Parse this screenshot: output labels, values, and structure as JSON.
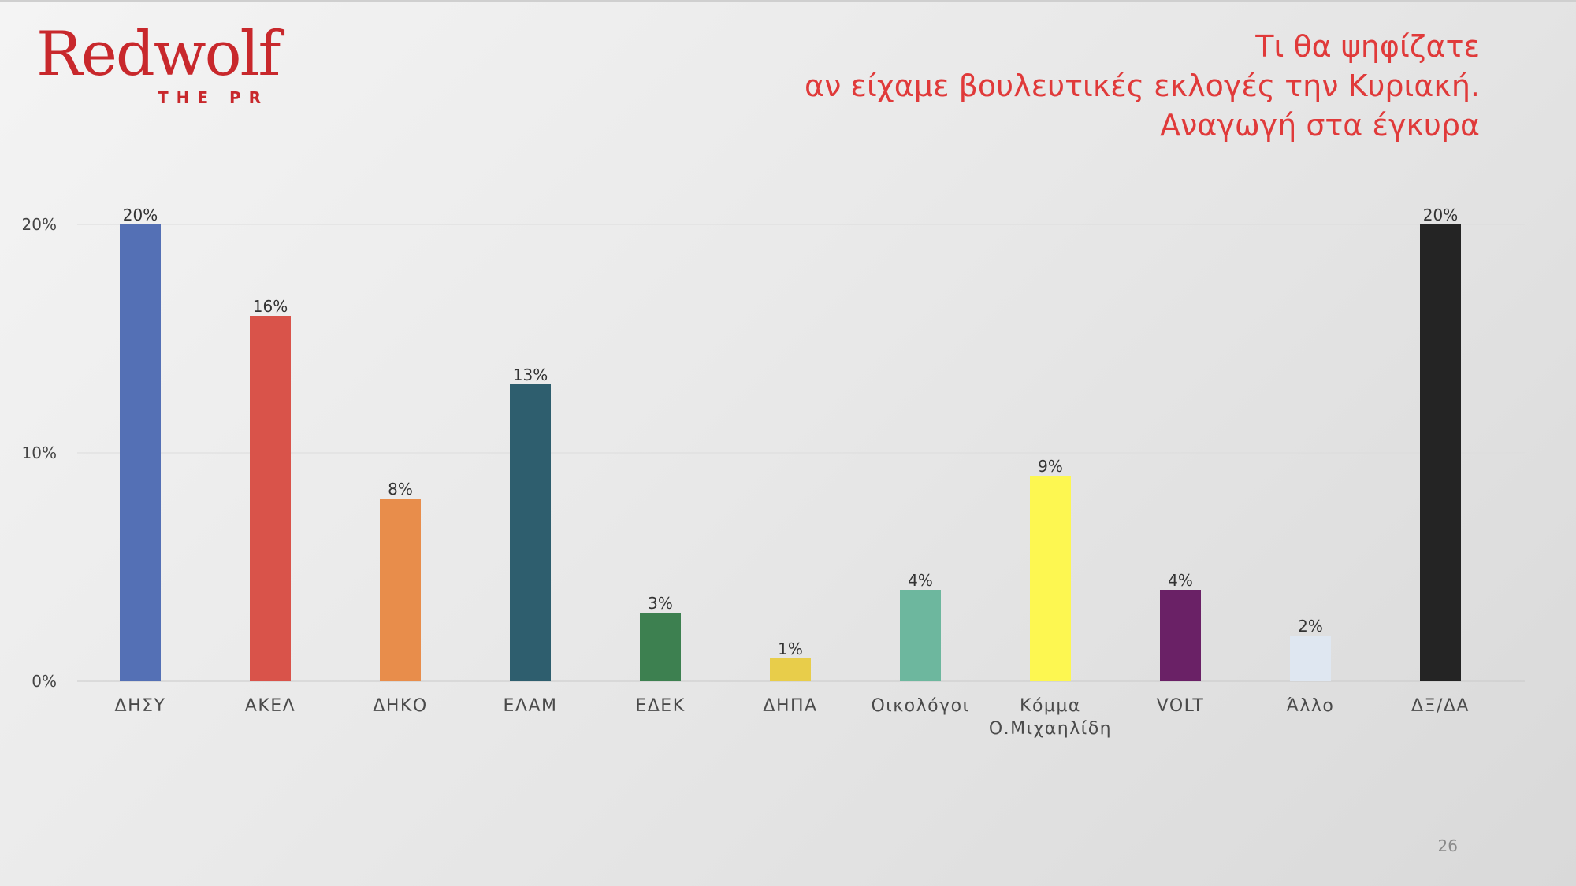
{
  "logo": {
    "word": "Redwolf",
    "sub": "THE PR"
  },
  "title": {
    "lines": [
      "Τι θα ψηφίζατε",
      "αν είχαμε βουλευτικές εκλογές την Κυριακή.",
      "Αναγωγή στα έγκυρα"
    ]
  },
  "page_number": "26",
  "chart_data": {
    "type": "bar",
    "title": "Τι θα ψηφίζατε αν είχαμε βουλευτικές εκλογές την Κυριακή. Αναγωγή στα έγκυρα",
    "xlabel": "",
    "ylabel": "",
    "ylim": [
      0,
      20
    ],
    "yticks": [
      0,
      10,
      20
    ],
    "ytick_labels": [
      "0%",
      "10%",
      "20%"
    ],
    "grid": true,
    "categories": [
      [
        "ΔΗΣΥ"
      ],
      [
        "ΑΚΕΛ"
      ],
      [
        "ΔΗΚΟ"
      ],
      [
        "ΕΛΑΜ"
      ],
      [
        "ΕΔΕΚ"
      ],
      [
        "ΔΗΠΑ"
      ],
      [
        "Οικολόγοι"
      ],
      [
        "Κόμμα",
        "Ο.Μιχαηλίδη"
      ],
      [
        "VOLT"
      ],
      [
        "Άλλο"
      ],
      [
        "ΔΞ/ΔΑ"
      ]
    ],
    "values": [
      20,
      16,
      8,
      13,
      3,
      1,
      4,
      9,
      4,
      2,
      20
    ],
    "value_labels": [
      "20%",
      "16%",
      "8%",
      "13%",
      "3%",
      "1%",
      "4%",
      "9%",
      "4%",
      "2%",
      "20%"
    ],
    "colors": [
      "#5470b5",
      "#d9534a",
      "#e88d4b",
      "#2e5e6e",
      "#3d8050",
      "#e8cd4a",
      "#6db79e",
      "#fdf751",
      "#6a2166",
      "#dfe7f1",
      "#242424"
    ]
  }
}
